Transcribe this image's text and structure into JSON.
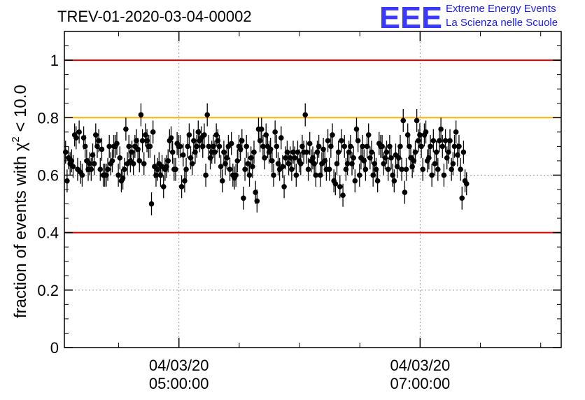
{
  "header": {
    "run_title": "TREV-01-2020-03-04-00002",
    "logo_mark": "EEE",
    "logo_line1": "Extreme Energy Events",
    "logo_line2": "La Scienza nelle Scuole"
  },
  "chart_data": {
    "type": "scatter",
    "ylabel_prefix": "fraction of events with χ",
    "ylabel_sup": "2",
    "ylabel_suffix": " < 10.0",
    "ylim": [
      0,
      1.1
    ],
    "yticks": [
      {
        "value": 0,
        "label": "0"
      },
      {
        "value": 0.2,
        "label": "0.2"
      },
      {
        "value": 0.4,
        "label": "0.4"
      },
      {
        "value": 0.6,
        "label": "0.6"
      },
      {
        "value": 0.8,
        "label": "0.8"
      },
      {
        "value": 1,
        "label": "1"
      }
    ],
    "x_range_hours": [
      4.05,
      8.17
    ],
    "x_major_ticks": [
      {
        "value": 5.0,
        "date": "04/03/20",
        "time": "05:00:00"
      },
      {
        "value": 7.0,
        "date": "04/03/20",
        "time": "07:00:00"
      }
    ],
    "x_minor_step_hours": 0.5,
    "grid": "dotted",
    "reference_lines": [
      {
        "value": 1.0,
        "color": "#e00000"
      },
      {
        "value": 0.8,
        "color": "#ffb000"
      },
      {
        "value": 0.4,
        "color": "#e00000"
      }
    ],
    "marker_color": "#000000",
    "series": [
      {
        "x_start_hours": 4.06,
        "x_step_hours": 0.0125,
        "error": 0.04,
        "values": [
          0.68,
          0.58,
          0.66,
          0.64,
          0.65,
          0.63,
          0.74,
          0.73,
          0.62,
          0.75,
          0.61,
          0.6,
          0.73,
          0.7,
          0.65,
          0.62,
          0.64,
          0.62,
          0.67,
          0.64,
          0.74,
          0.7,
          0.72,
          0.62,
          0.69,
          0.6,
          0.6,
          0.6,
          0.62,
          0.7,
          0.64,
          0.65,
          0.7,
          0.7,
          0.71,
          0.6,
          0.66,
          0.58,
          0.59,
          0.62,
          0.76,
          0.64,
          0.7,
          0.65,
          0.68,
          0.64,
          0.7,
          0.72,
          0.69,
          0.65,
          0.81,
          0.72,
          0.64,
          0.74,
          0.72,
          0.7,
          0.7,
          0.5,
          0.75,
          0.63,
          0.6,
          0.62,
          0.64,
          0.6,
          0.63,
          0.56,
          0.62,
          0.63,
          0.65,
          0.72,
          0.73,
          0.68,
          0.62,
          0.62,
          0.71,
          0.7,
          0.7,
          0.56,
          0.67,
          0.58,
          0.62,
          0.7,
          0.74,
          0.66,
          0.64,
          0.72,
          0.68,
          0.7,
          0.75,
          0.72,
          0.73,
          0.7,
          0.74,
          0.6,
          0.81,
          0.7,
          0.66,
          0.68,
          0.7,
          0.68,
          0.74,
          0.72,
          0.7,
          0.63,
          0.58,
          0.68,
          0.64,
          0.66,
          0.7,
          0.62,
          0.71,
          0.6,
          0.59,
          0.6,
          0.65,
          0.7,
          0.69,
          0.72,
          0.52,
          0.62,
          0.7,
          0.64,
          0.6,
          0.66,
          0.63,
          0.68,
          0.54,
          0.51,
          0.76,
          0.72,
          0.76,
          0.7,
          0.66,
          0.74,
          0.7,
          0.68,
          0.69,
          0.65,
          0.6,
          0.75,
          0.7,
          0.64,
          0.62,
          0.73,
          0.63,
          0.56,
          0.66,
          0.68,
          0.64,
          0.66,
          0.62,
          0.68,
          0.66,
          0.6,
          0.68,
          0.65,
          0.64,
          0.7,
          0.68,
          0.81,
          0.68,
          0.62,
          0.71,
          0.65,
          0.66,
          0.64,
          0.6,
          0.68,
          0.7,
          0.6,
          0.64,
          0.69,
          0.65,
          0.62,
          0.72,
          0.62,
          0.7,
          0.74,
          0.58,
          0.57,
          0.64,
          0.68,
          0.56,
          0.72,
          0.53,
          0.7,
          0.62,
          0.64,
          0.68,
          0.7,
          0.64,
          0.66,
          0.58,
          0.76,
          0.72,
          0.6,
          0.66,
          0.7,
          0.65,
          0.62,
          0.7,
          0.74,
          0.66,
          0.68,
          0.6,
          0.64,
          0.62,
          0.58,
          0.71,
          0.7,
          0.7,
          0.64,
          0.66,
          0.68,
          0.62,
          0.7,
          0.66,
          0.6,
          0.58,
          0.67,
          0.63,
          0.66,
          0.7,
          0.62,
          0.79,
          0.54,
          0.62,
          0.74,
          0.7,
          0.66,
          0.63,
          0.65,
          0.68,
          0.79,
          0.72,
          0.74,
          0.7,
          0.62,
          0.74,
          0.75,
          0.65,
          0.66,
          0.7,
          0.6,
          0.72,
          0.64,
          0.68,
          0.62,
          0.72,
          0.76,
          0.7,
          0.6,
          0.72,
          0.66,
          0.68,
          0.72,
          0.62,
          0.64,
          0.7,
          0.75,
          0.67,
          0.7,
          0.62,
          0.52,
          0.68,
          0.58,
          0.57
        ]
      }
    ]
  }
}
